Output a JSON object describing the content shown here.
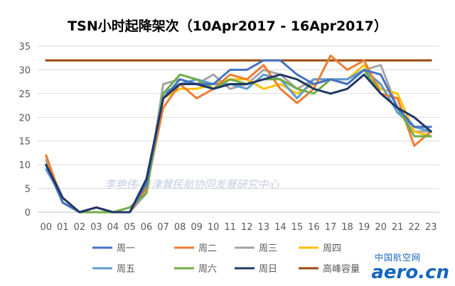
{
  "chart_data": {
    "type": "line",
    "title": "TSN小时起降架次（10Apr2017 - 16Apr2017）",
    "xlabel": "",
    "ylabel": "",
    "categories": [
      "00",
      "01",
      "02",
      "03",
      "04",
      "05",
      "06",
      "07",
      "08",
      "09",
      "10",
      "11",
      "12",
      "13",
      "14",
      "15",
      "16",
      "17",
      "18",
      "19",
      "20",
      "21",
      "22",
      "23"
    ],
    "ylim": [
      0,
      35
    ],
    "yticks": [
      "0",
      "5",
      "10",
      "15",
      "20",
      "25",
      "30",
      "35"
    ],
    "grid": true,
    "legend_position": "bottom",
    "series": [
      {
        "name": "周一",
        "color": "#4472c4",
        "values": [
          10,
          2,
          0,
          1,
          0,
          0,
          6,
          24,
          28,
          27,
          27,
          30,
          30,
          32,
          32,
          29,
          27,
          28,
          27,
          30,
          29,
          22,
          18,
          18
        ]
      },
      {
        "name": "周二",
        "color": "#ed7d31",
        "values": [
          12,
          2,
          0,
          1,
          0,
          0,
          5,
          22,
          27,
          24,
          26,
          29,
          28,
          31,
          26,
          23,
          26,
          33,
          30,
          32,
          25,
          24,
          14,
          17
        ]
      },
      {
        "name": "周三",
        "color": "#a5a5a5",
        "values": [
          11,
          3,
          0,
          1,
          0,
          0,
          4,
          27,
          28,
          27,
          29,
          26,
          27,
          30,
          29,
          26,
          28,
          28,
          27,
          30,
          31,
          22,
          17,
          17
        ]
      },
      {
        "name": "周四",
        "color": "#ffc000",
        "values": [
          12,
          2,
          0,
          1,
          0,
          0,
          5,
          24,
          26,
          26,
          27,
          28,
          28,
          26,
          27,
          25,
          27,
          28,
          28,
          31,
          26,
          25,
          17,
          16
        ]
      },
      {
        "name": "周五",
        "color": "#5b9bd5",
        "values": [
          9,
          3,
          0,
          0,
          0,
          0,
          5,
          25,
          27,
          28,
          27,
          27,
          26,
          29,
          28,
          24,
          28,
          28,
          28,
          30,
          27,
          21,
          18,
          17
        ]
      },
      {
        "name": "周六",
        "color": "#70ad47",
        "values": [
          10,
          2,
          0,
          0,
          0,
          1,
          4,
          25,
          29,
          28,
          26,
          28,
          27,
          28,
          28,
          26,
          25,
          28,
          27,
          30,
          25,
          22,
          16,
          16
        ]
      },
      {
        "name": "周日",
        "color": "#203864",
        "values": [
          10,
          3,
          0,
          1,
          0,
          0,
          7,
          24,
          27,
          27,
          26,
          27,
          27,
          28,
          29,
          28,
          26,
          25,
          26,
          29,
          25,
          22,
          20,
          17
        ]
      },
      {
        "name": "高峰容量",
        "color": "#9e480e",
        "values": [
          32,
          32,
          32,
          32,
          32,
          32,
          32,
          32,
          32,
          32,
          32,
          32,
          32,
          32,
          32,
          32,
          32,
          32,
          32,
          32,
          32,
          32,
          32,
          32
        ]
      }
    ]
  },
  "watermark": "李艳伟-京津冀民航协同发展研究中心",
  "logo": {
    "top_text": "中国航空网",
    "main_text": "aero.cn",
    "color": "#1565c0"
  }
}
